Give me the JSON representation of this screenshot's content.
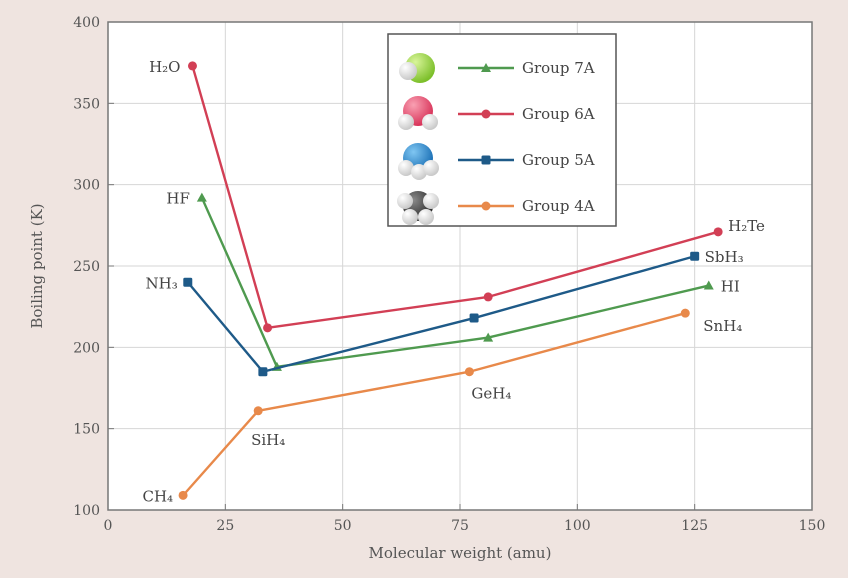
{
  "chart_data": {
    "type": "line",
    "title": "",
    "xlabel": "Molecular weight (amu)",
    "ylabel": "Boiling point (K)",
    "xlim": [
      0,
      150
    ],
    "ylim": [
      100,
      400
    ],
    "xticks": [
      0,
      25,
      50,
      75,
      100,
      125,
      150
    ],
    "yticks": [
      100,
      150,
      200,
      250,
      300,
      350,
      400
    ],
    "grid": true,
    "legend_position": "top-center",
    "series": [
      {
        "name": "Group 7A",
        "color": "#4f9a4f",
        "marker": "triangle",
        "icon": "green-molecule-icon",
        "points": [
          {
            "x": 20,
            "y": 292,
            "label": "HF"
          },
          {
            "x": 36,
            "y": 188,
            "label": ""
          },
          {
            "x": 81,
            "y": 206,
            "label": ""
          },
          {
            "x": 128,
            "y": 238,
            "label": "HI"
          }
        ]
      },
      {
        "name": "Group 6A",
        "color": "#d23f55",
        "marker": "circle",
        "icon": "red-molecule-icon",
        "points": [
          {
            "x": 18,
            "y": 373,
            "label": "H₂O"
          },
          {
            "x": 34,
            "y": 212,
            "label": ""
          },
          {
            "x": 81,
            "y": 231,
            "label": ""
          },
          {
            "x": 130,
            "y": 271,
            "label": "H₂Te"
          }
        ]
      },
      {
        "name": "Group 5A",
        "color": "#1e5a88",
        "marker": "square",
        "icon": "blue-molecule-icon",
        "points": [
          {
            "x": 17,
            "y": 240,
            "label": "NH₃"
          },
          {
            "x": 33,
            "y": 185,
            "label": ""
          },
          {
            "x": 78,
            "y": 218,
            "label": ""
          },
          {
            "x": 125,
            "y": 256,
            "label": "SbH₃"
          }
        ]
      },
      {
        "name": "Group 4A",
        "color": "#e8894a",
        "marker": "circle",
        "icon": "gray-molecule-icon",
        "points": [
          {
            "x": 16,
            "y": 109,
            "label": "CH₄"
          },
          {
            "x": 32,
            "y": 161,
            "label": "SiH₄"
          },
          {
            "x": 77,
            "y": 185,
            "label": "GeH₄"
          },
          {
            "x": 123,
            "y": 221,
            "label": "SnH₄"
          }
        ]
      }
    ]
  }
}
